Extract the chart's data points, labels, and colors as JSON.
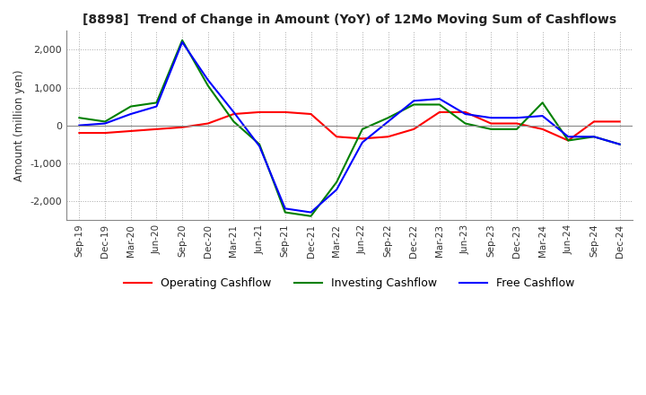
{
  "title": "[8898]  Trend of Change in Amount (YoY) of 12Mo Moving Sum of Cashflows",
  "ylabel": "Amount (million yen)",
  "x_labels": [
    "Sep-19",
    "Dec-19",
    "Mar-20",
    "Jun-20",
    "Sep-20",
    "Dec-20",
    "Mar-21",
    "Jun-21",
    "Sep-21",
    "Dec-21",
    "Mar-22",
    "Jun-22",
    "Sep-22",
    "Dec-22",
    "Mar-23",
    "Jun-23",
    "Sep-23",
    "Dec-23",
    "Mar-24",
    "Jun-24",
    "Sep-24",
    "Dec-24"
  ],
  "operating": [
    -200,
    -200,
    -150,
    -100,
    -50,
    50,
    300,
    350,
    350,
    300,
    -300,
    -350,
    -300,
    -100,
    350,
    350,
    50,
    50,
    -100,
    -400,
    100,
    100
  ],
  "investing": [
    200,
    100,
    500,
    600,
    2250,
    1050,
    100,
    -500,
    -2300,
    -2400,
    -1500,
    -100,
    200,
    550,
    550,
    50,
    -100,
    -100,
    600,
    -400,
    -300,
    -500
  ],
  "free": [
    0,
    50,
    300,
    500,
    2200,
    1200,
    350,
    -550,
    -2200,
    -2300,
    -1700,
    -450,
    100,
    650,
    700,
    300,
    200,
    200,
    250,
    -300,
    -300,
    -500
  ],
  "ylim": [
    -2500,
    2500
  ],
  "yticks": [
    -2000,
    -1000,
    0,
    1000,
    2000
  ],
  "operating_color": "#ff0000",
  "investing_color": "#008000",
  "free_color": "#0000ff",
  "background_color": "#ffffff",
  "grid_color": "#aaaaaa"
}
